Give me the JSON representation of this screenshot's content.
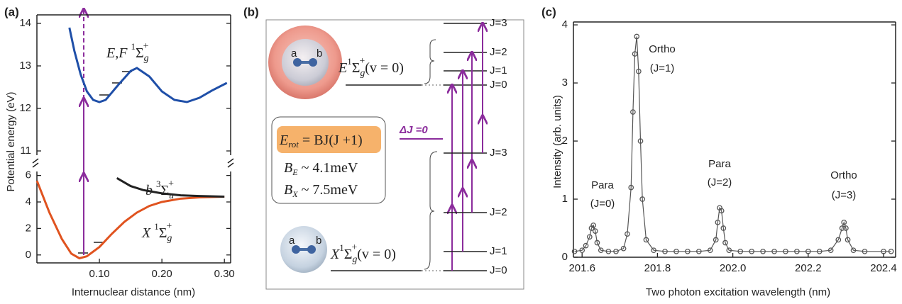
{
  "chart_data": [
    {
      "type": "line",
      "label": "(a)",
      "xlim": [
        0,
        0.31
      ],
      "ylim": [
        10.9,
        14.2
      ],
      "yticks": [
        11,
        12,
        13,
        14
      ],
      "series": [
        {
          "color": "#1f4fa8",
          "x": [
            0.052,
            0.06,
            0.07,
            0.08,
            0.09,
            0.1,
            0.11,
            0.13,
            0.15,
            0.16,
            0.18,
            0.2,
            0.22,
            0.24,
            0.26,
            0.28,
            0.304
          ],
          "values": [
            13.9,
            13.35,
            12.8,
            12.4,
            12.2,
            12.15,
            12.2,
            12.55,
            12.88,
            12.95,
            12.75,
            12.4,
            12.2,
            12.15,
            12.25,
            12.42,
            12.6
          ]
        }
      ],
      "annotations": [
        {
          "letter": "E,F ",
          "spin": "1",
          "sym": "Σ",
          "sub": "g",
          "sup": "+"
        }
      ]
    },
    {
      "type": "line",
      "xlabel": "Internuclear distance (nm)",
      "ylabel": "Potential energy (eV)",
      "xlim": [
        0,
        0.31
      ],
      "xticks": [
        {
          "value": 0.1,
          "label": "0.10"
        },
        {
          "value": 0.2,
          "label": "0.20"
        },
        {
          "value": 0.3,
          "label": "0.30"
        }
      ],
      "ylim": [
        -0.6,
        6.3
      ],
      "yticks": [
        0,
        2,
        4,
        6
      ],
      "series": [
        {
          "color": "#e0531f",
          "x": [
            0.0,
            0.02,
            0.04,
            0.055,
            0.068,
            0.08,
            0.1,
            0.12,
            0.14,
            0.16,
            0.18,
            0.2,
            0.23,
            0.26,
            0.3
          ],
          "values": [
            5.6,
            3.2,
            1.2,
            0.1,
            -0.25,
            -0.1,
            0.6,
            1.6,
            2.5,
            3.2,
            3.7,
            4.0,
            4.25,
            4.35,
            4.4
          ]
        },
        {
          "color": "#222222",
          "x": [
            0.128,
            0.15,
            0.17,
            0.2,
            0.23,
            0.26,
            0.3
          ],
          "values": [
            5.8,
            5.2,
            4.9,
            4.65,
            4.5,
            4.45,
            4.4
          ]
        }
      ],
      "annotations": [
        {
          "letter": "b ",
          "spin": "3",
          "sym": "Σ",
          "sub": "u",
          "sup": "+"
        },
        {
          "letter": "X ",
          "spin": "1",
          "sym": "Σ",
          "sub": "g",
          "sup": "+"
        }
      ]
    },
    {
      "type": "line",
      "label": "(c)",
      "xlabel": "Two photon excitation wavelength (nm)",
      "ylabel": "Intensity (arb. units)",
      "xlim": [
        201.577,
        202.432
      ],
      "xticks": [
        201.6,
        201.8,
        {
          "value": 202,
          "label": "202.0"
        },
        202.2,
        202.4
      ],
      "ylim": [
        0,
        4.05
      ],
      "yticks": [
        0,
        1,
        2,
        3,
        4
      ],
      "series": [
        {
          "color": "#555555",
          "marker": "circle",
          "x": [
            201.58,
            201.6,
            201.61,
            201.62,
            201.625,
            201.63,
            201.635,
            201.64,
            201.65,
            201.67,
            201.69,
            201.71,
            201.72,
            201.73,
            201.735,
            201.74,
            201.745,
            201.75,
            201.755,
            201.76,
            201.77,
            201.79,
            201.82,
            201.85,
            201.88,
            201.91,
            201.94,
            201.955,
            201.96,
            201.965,
            201.97,
            201.975,
            201.98,
            201.99,
            202.02,
            202.05,
            202.08,
            202.11,
            202.14,
            202.17,
            202.2,
            202.23,
            202.26,
            202.28,
            202.29,
            202.295,
            202.3,
            202.305,
            202.32,
            202.35,
            202.4,
            202.42
          ],
          "values": [
            0.1,
            0.12,
            0.2,
            0.35,
            0.5,
            0.55,
            0.45,
            0.25,
            0.12,
            0.1,
            0.1,
            0.15,
            0.4,
            1.2,
            2.5,
            3.5,
            3.8,
            3.2,
            2.0,
            1.0,
            0.3,
            0.12,
            0.1,
            0.1,
            0.1,
            0.1,
            0.12,
            0.3,
            0.6,
            0.85,
            0.8,
            0.5,
            0.25,
            0.12,
            0.1,
            0.1,
            0.1,
            0.1,
            0.1,
            0.1,
            0.1,
            0.1,
            0.12,
            0.3,
            0.5,
            0.6,
            0.5,
            0.3,
            0.12,
            0.1,
            0.1,
            0.1
          ]
        }
      ],
      "annotations": [
        "Para",
        "(J=0)",
        "Ortho",
        "(J=1)",
        "Para",
        "(J=2)",
        "Ortho",
        "(J=3)"
      ]
    }
  ],
  "diagram": {
    "label": "(b)",
    "atoms": [
      "a",
      "b"
    ],
    "upper_state": {
      "letter": "E",
      "spin": "1",
      "sym": "Σ",
      "sub": "g",
      "sup": "+",
      "vib": "(v = 0)"
    },
    "lower_state": {
      "letter": "X",
      "spin": "1",
      "sym": "Σ",
      "sub": "g",
      "sup": "+",
      "vib": "(v = 0)"
    },
    "formula": {
      "sym": "E",
      "sub": "rot",
      "rest": " = BJ(J +1)"
    },
    "constants": [
      {
        "sym": "B",
        "sub": "E",
        "text": " ~ 4.1meV"
      },
      {
        "sym": "B",
        "sub": "X",
        "text": " ~ 7.5meV"
      }
    ],
    "selection_rule": "ΔJ =0",
    "upper_levels": [
      "J=0",
      "J=1",
      "J=2",
      "J=3"
    ],
    "lower_levels": [
      "J=0",
      "J=1",
      "J=2",
      "J=3"
    ]
  }
}
